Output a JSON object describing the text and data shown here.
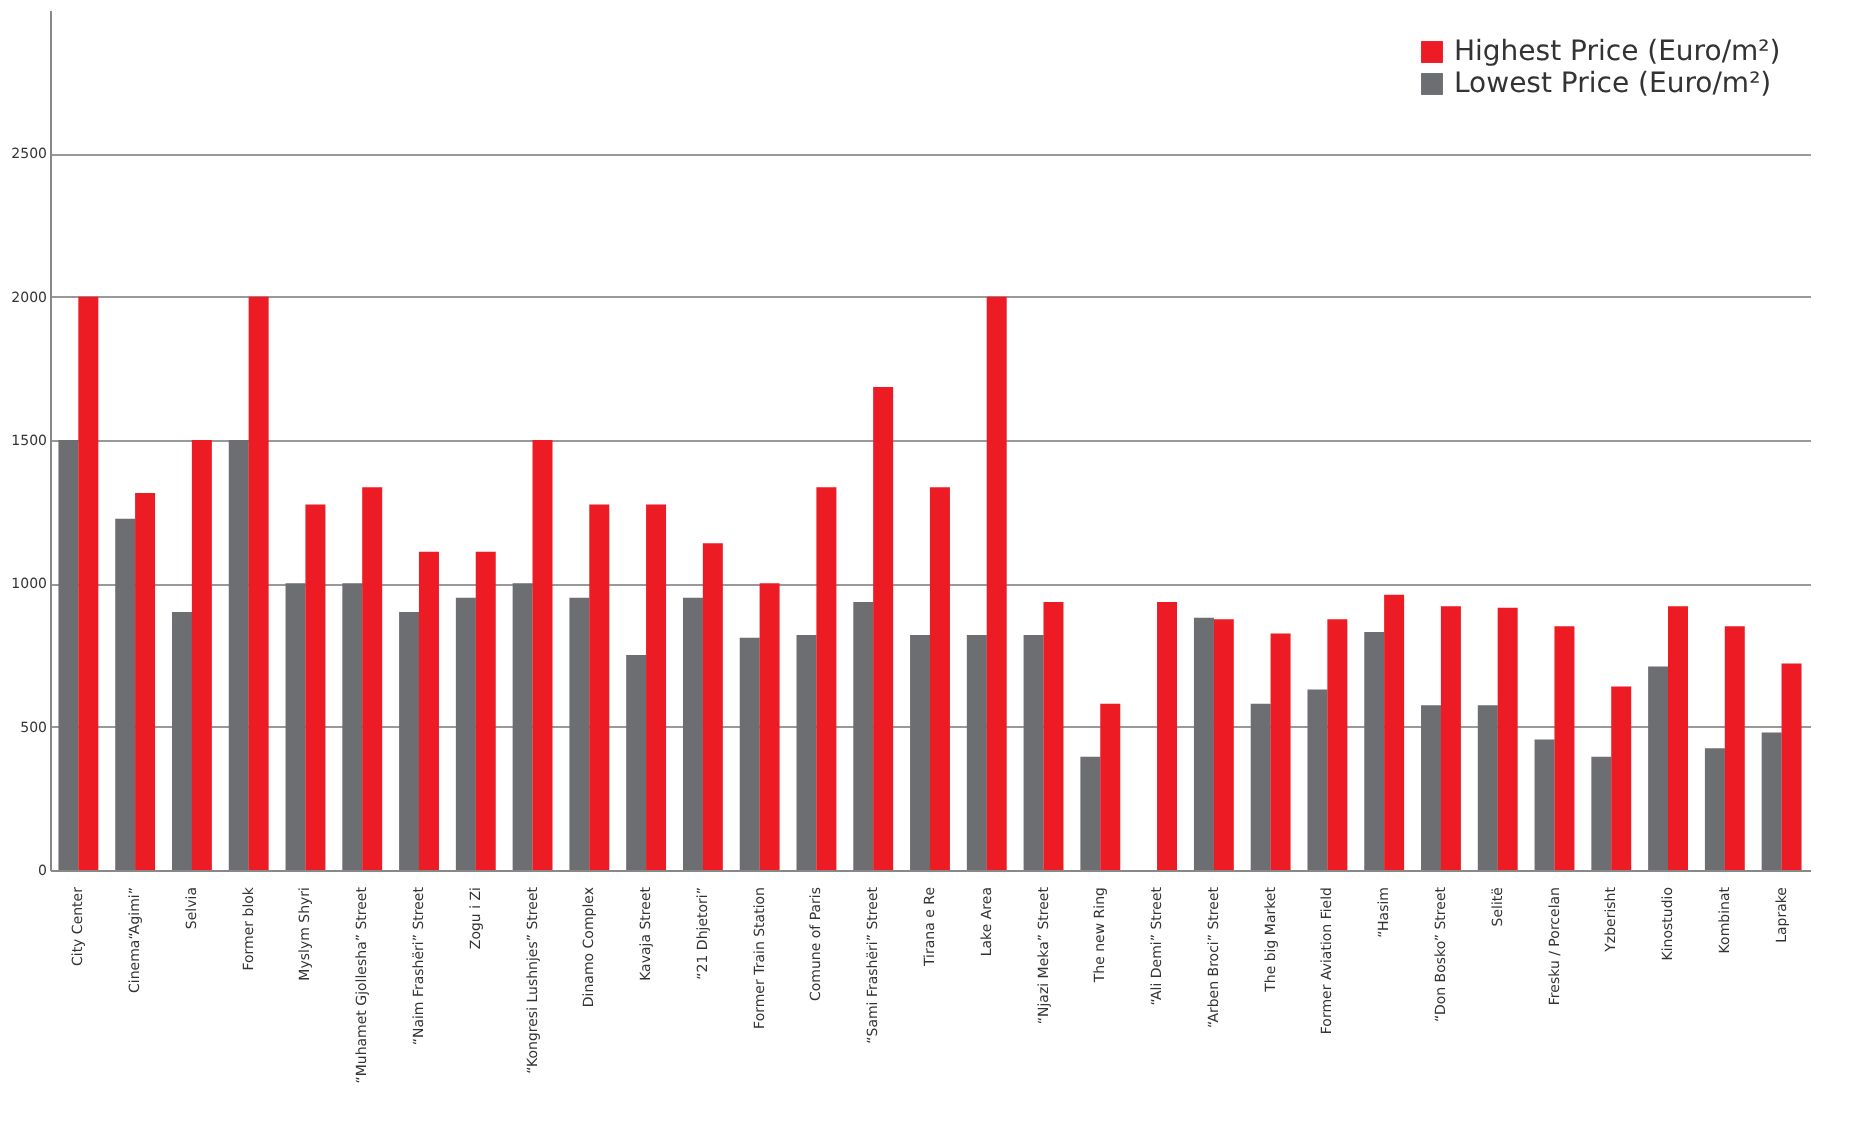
{
  "chart_data": {
    "type": "bar",
    "categories": [
      "City Center",
      "Cinema“Agimi”",
      "Selvia",
      "Former blok",
      "Myslym Shyri",
      "“Muhamet Gjollesha” Street",
      "“Naim Frashëri” Street",
      "Zogu i Zi",
      "“Kongresi Lushnjes” Street",
      "Dinamo Complex",
      "Kavaja Street",
      "“21 Dhjetori”",
      "Former Train Station",
      "Comune of Paris",
      "“Sami Frashëri” Street",
      "Tirana e Re",
      "Lake Area",
      "“Njazi Meka” Street",
      "The new Ring",
      "“Ali Demi” Street",
      "“Arben Broci” Street",
      "The big Market",
      "Former Aviation Field",
      "“Hasim",
      "“Don Bosko” Street",
      "Selitë",
      "Fresku / Porcelan",
      "Yzberisht",
      "Kinostudio",
      "Kombinat",
      "Laprake"
    ],
    "series": [
      {
        "name": "Lowest Price (Euro/m²)",
        "color": "#6d6e71",
        "values": [
          1500,
          1225,
          900,
          1500,
          1000,
          1000,
          900,
          950,
          1000,
          950,
          750,
          950,
          810,
          820,
          935,
          820,
          820,
          820,
          395,
          null,
          880,
          580,
          630,
          830,
          575,
          575,
          455,
          395,
          710,
          425,
          480
        ]
      },
      {
        "name": "Highest Price (Euro/m²)",
        "color": "#ed1c24",
        "values": [
          2000,
          1315,
          1500,
          2000,
          1275,
          1335,
          1110,
          1110,
          1500,
          1275,
          1275,
          1140,
          1000,
          1335,
          1685,
          1335,
          2000,
          935,
          580,
          935,
          875,
          825,
          875,
          960,
          920,
          915,
          850,
          640,
          920,
          850,
          720
        ]
      }
    ],
    "ylim": [
      0,
      3000
    ],
    "yticks": [
      0,
      500,
      1000,
      1500,
      2000,
      2500
    ],
    "grid": "y",
    "legend": "top right"
  }
}
